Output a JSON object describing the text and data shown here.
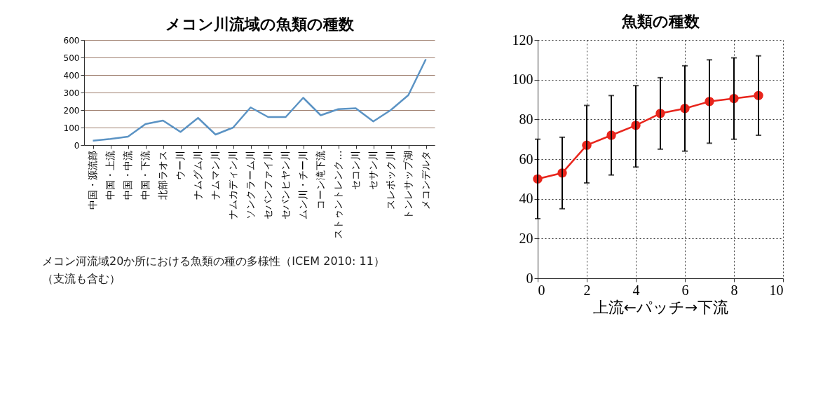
{
  "chart_data": [
    {
      "type": "line",
      "title": "メコン川流域の魚類の種数",
      "categories": [
        "中国・源流部",
        "中国・上流",
        "中国・中流",
        "中国・下流",
        "北部ラオス",
        "ウー川",
        "ナムグム川",
        "ナムマン川",
        "ナムカディン川",
        "ソンクラーム川",
        "セバンファイ川",
        "セバンヒヤン川",
        "ムン川・チー川",
        "コーン滝下流",
        "ストゥントレンク…",
        "セコン川",
        "セサン川",
        "スレポック川",
        "トンレサップ湖",
        "メコンデルタ"
      ],
      "series": [
        {
          "color": "#5b93c4",
          "values": [
            25,
            35,
            48,
            120,
            140,
            75,
            155,
            60,
            100,
            215,
            160,
            160,
            270,
            170,
            205,
            210,
            135,
            200,
            285,
            490
          ]
        }
      ],
      "ylim": [
        0,
        600
      ],
      "yticks": [
        0,
        100,
        200,
        300,
        400,
        500,
        600
      ],
      "grid": "y",
      "marker": "none",
      "annotations": [
        "メコン河流域20か所における魚類の種の多様性（ICEM 2010: 11）",
        "（支流も含む）"
      ]
    },
    {
      "type": "line",
      "title": "魚類の種数",
      "xlabel": "上流←パッチ→下流",
      "x": [
        0,
        1,
        2,
        3,
        4,
        5,
        6,
        7,
        8,
        9
      ],
      "series": [
        {
          "color": "#e8251c",
          "values": [
            50,
            53,
            67,
            72,
            77,
            83,
            85.5,
            89,
            90.5,
            92
          ],
          "errors": [
            [
              30,
              70
            ],
            [
              35,
              71
            ],
            [
              48,
              87
            ],
            [
              52,
              92
            ],
            [
              56,
              97
            ],
            [
              65,
              101
            ],
            [
              64,
              107
            ],
            [
              68,
              110
            ],
            [
              70,
              111
            ],
            [
              72,
              112
            ]
          ]
        }
      ],
      "xlim": [
        0,
        10
      ],
      "xticks": [
        0,
        2,
        4,
        6,
        8,
        10
      ],
      "ylim": [
        0,
        120
      ],
      "yticks": [
        0,
        20,
        40,
        60,
        80,
        100,
        120
      ],
      "grid": true,
      "marker": "circle"
    }
  ]
}
